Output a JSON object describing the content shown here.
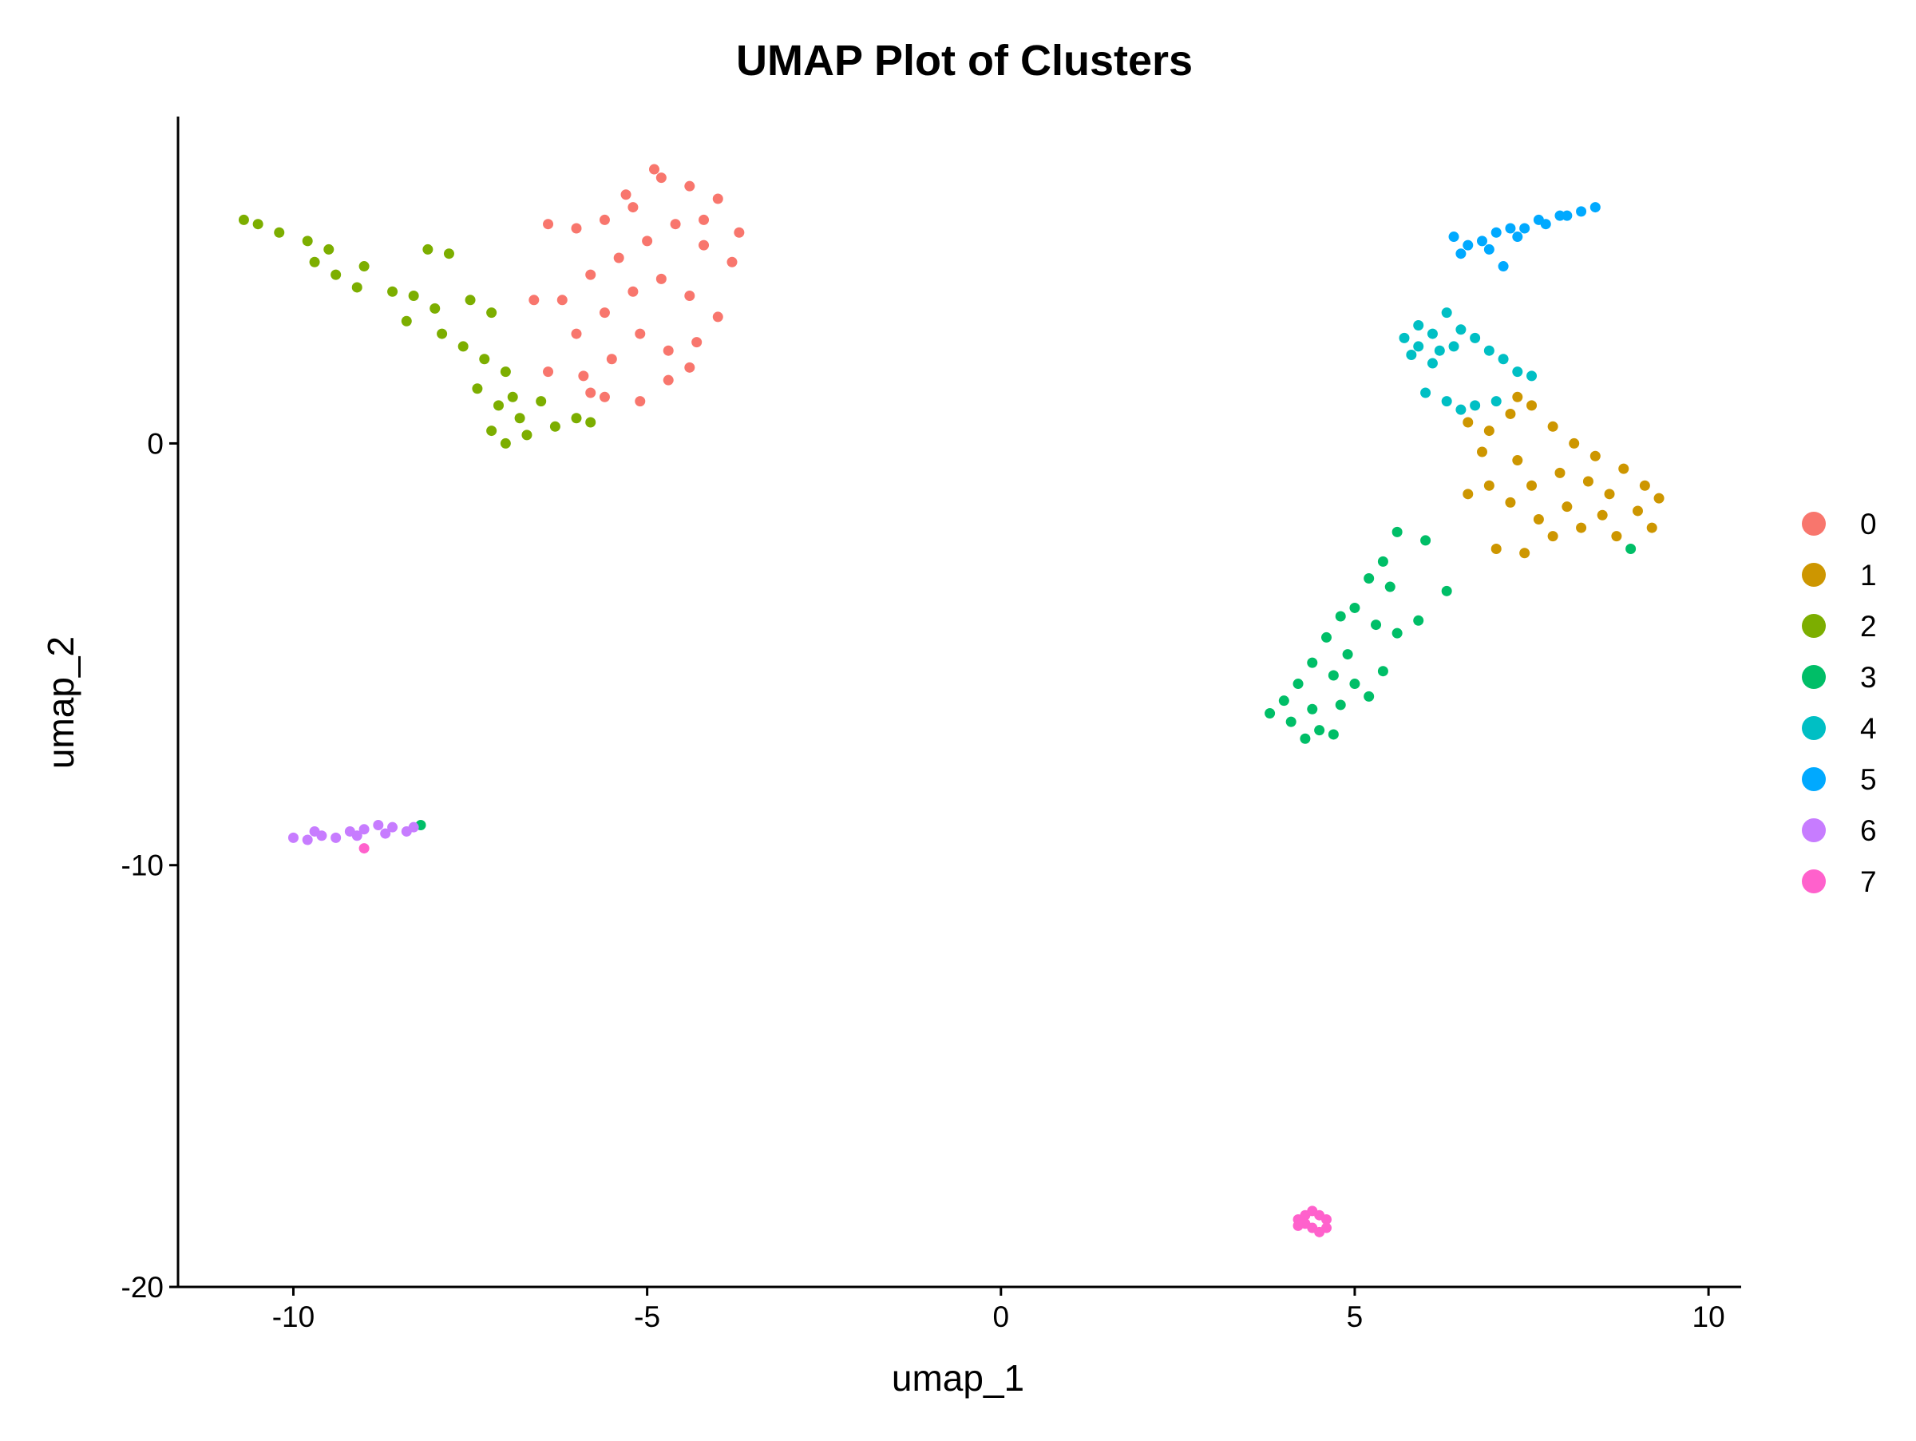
{
  "chart_data": {
    "type": "scatter",
    "title": "UMAP Plot of Clusters",
    "x_label": "umap_1",
    "y_label": "umap_2",
    "xlim": [
      -11.63,
      10.45
    ],
    "ylim": [
      -20.0,
      7.75
    ],
    "xticks": [
      -10,
      -5,
      0,
      5,
      10
    ],
    "yticks": [
      -20,
      -10,
      0
    ],
    "legend": "right",
    "series": [
      {
        "name": "0",
        "color": "#F8766D",
        "x": [
          -6.4,
          -6.0,
          -5.6,
          -5.2,
          -4.8,
          -4.4,
          -4.0,
          -3.7,
          -3.8,
          -4.2,
          -4.6,
          -5.0,
          -5.4,
          -5.8,
          -6.2,
          -6.6,
          -6.0,
          -5.6,
          -5.2,
          -4.8,
          -4.4,
          -4.0,
          -4.3,
          -4.7,
          -5.1,
          -5.5,
          -5.9,
          -6.4,
          -5.6,
          -5.1,
          -4.7,
          -4.4,
          -5.3,
          -4.9,
          -4.2,
          -5.8
        ],
        "y": [
          5.2,
          5.1,
          5.3,
          5.6,
          6.3,
          6.1,
          5.8,
          5.0,
          4.3,
          4.7,
          5.2,
          4.8,
          4.4,
          4.0,
          3.4,
          3.4,
          2.6,
          3.1,
          3.6,
          3.9,
          3.5,
          3.0,
          2.4,
          2.2,
          2.6,
          2.0,
          1.6,
          1.7,
          1.1,
          1.0,
          1.5,
          1.8,
          5.9,
          6.5,
          5.3,
          1.2
        ]
      },
      {
        "name": "1",
        "color": "#CD9600",
        "x": [
          6.6,
          6.9,
          7.2,
          7.5,
          7.8,
          8.1,
          8.4,
          8.8,
          9.1,
          9.3,
          9.0,
          8.6,
          8.3,
          8.0,
          7.6,
          7.2,
          6.9,
          6.6,
          7.0,
          7.4,
          7.8,
          8.2,
          8.7,
          9.2,
          7.3,
          7.9,
          6.8,
          7.5,
          8.5,
          7.3
        ],
        "y": [
          0.5,
          0.3,
          0.7,
          0.9,
          0.4,
          0.0,
          -0.3,
          -0.6,
          -1.0,
          -1.3,
          -1.6,
          -1.2,
          -0.9,
          -1.5,
          -1.8,
          -1.4,
          -1.0,
          -1.2,
          -2.5,
          -2.6,
          -2.2,
          -2.0,
          -2.2,
          -2.0,
          -0.4,
          -0.7,
          -0.2,
          -1.0,
          -1.7,
          1.1
        ]
      },
      {
        "name": "2",
        "color": "#7CAE00",
        "x": [
          -10.7,
          -10.5,
          -10.2,
          -9.8,
          -9.5,
          -9.7,
          -9.4,
          -9.1,
          -9.0,
          -8.6,
          -8.3,
          -8.0,
          -8.4,
          -7.9,
          -7.5,
          -7.2,
          -7.6,
          -7.3,
          -7.0,
          -7.4,
          -7.1,
          -6.8,
          -6.5,
          -6.3,
          -6.0,
          -5.8,
          -6.7,
          -7.2,
          -7.0,
          -7.8,
          -8.1,
          -6.9
        ],
        "y": [
          5.3,
          5.2,
          5.0,
          4.8,
          4.6,
          4.3,
          4.0,
          3.7,
          4.2,
          3.6,
          3.5,
          3.2,
          2.9,
          2.6,
          3.4,
          3.1,
          2.3,
          2.0,
          1.7,
          1.3,
          0.9,
          0.6,
          1.0,
          0.4,
          0.6,
          0.5,
          0.2,
          0.3,
          0.0,
          4.5,
          4.6,
          1.1
        ]
      },
      {
        "name": "3",
        "color": "#00BE67",
        "x": [
          5.6,
          5.4,
          5.2,
          5.5,
          5.0,
          4.8,
          5.3,
          4.6,
          4.9,
          5.6,
          5.9,
          4.4,
          4.7,
          5.0,
          5.4,
          5.2,
          4.2,
          4.0,
          4.4,
          4.8,
          3.8,
          4.1,
          4.5,
          4.7,
          4.3,
          6.3,
          8.9,
          6.0,
          -8.2
        ],
        "y": [
          -2.1,
          -2.8,
          -3.2,
          -3.4,
          -3.9,
          -4.1,
          -4.3,
          -4.6,
          -5.0,
          -4.5,
          -4.2,
          -5.2,
          -5.5,
          -5.7,
          -5.4,
          -6.0,
          -5.7,
          -6.1,
          -6.3,
          -6.2,
          -6.4,
          -6.6,
          -6.8,
          -6.9,
          -7.0,
          -3.5,
          -2.5,
          -2.3,
          -9.05
        ]
      },
      {
        "name": "4",
        "color": "#00BFC4",
        "x": [
          5.7,
          5.9,
          6.1,
          6.3,
          6.5,
          6.7,
          5.8,
          6.1,
          6.4,
          6.9,
          7.1,
          7.3,
          7.5,
          6.0,
          6.3,
          6.5,
          6.7,
          7.0,
          5.9,
          6.2
        ],
        "y": [
          2.5,
          2.8,
          2.6,
          3.1,
          2.7,
          2.5,
          2.1,
          1.9,
          2.3,
          2.2,
          2.0,
          1.7,
          1.6,
          1.2,
          1.0,
          0.8,
          0.9,
          1.0,
          2.3,
          2.2
        ]
      },
      {
        "name": "5",
        "color": "#00A9FF",
        "x": [
          6.4,
          6.6,
          6.8,
          7.0,
          7.2,
          7.4,
          7.6,
          7.9,
          8.2,
          8.4,
          6.5,
          6.9,
          7.1,
          7.7,
          8.0,
          7.3
        ],
        "y": [
          4.9,
          4.7,
          4.8,
          5.0,
          5.1,
          5.1,
          5.3,
          5.4,
          5.5,
          5.6,
          4.5,
          4.6,
          4.2,
          5.2,
          5.4,
          4.9
        ]
      },
      {
        "name": "6",
        "color": "#C77CFF",
        "x": [
          -10.0,
          -9.8,
          -9.6,
          -9.4,
          -9.2,
          -9.0,
          -8.8,
          -8.6,
          -8.4,
          -8.3,
          -9.1,
          -8.7,
          -9.7
        ],
        "y": [
          -9.35,
          -9.4,
          -9.3,
          -9.35,
          -9.2,
          -9.15,
          -9.05,
          -9.1,
          -9.2,
          -9.1,
          -9.3,
          -9.25,
          -9.2
        ]
      },
      {
        "name": "7",
        "color": "#FF61CC",
        "x": [
          4.2,
          4.3,
          4.4,
          4.5,
          4.6,
          4.6,
          4.5,
          4.3,
          4.4,
          4.2,
          -9.0
        ],
        "y": [
          -18.4,
          -18.3,
          -18.2,
          -18.3,
          -18.4,
          -18.6,
          -18.7,
          -18.5,
          -18.6,
          -18.55,
          -9.6
        ]
      }
    ]
  }
}
